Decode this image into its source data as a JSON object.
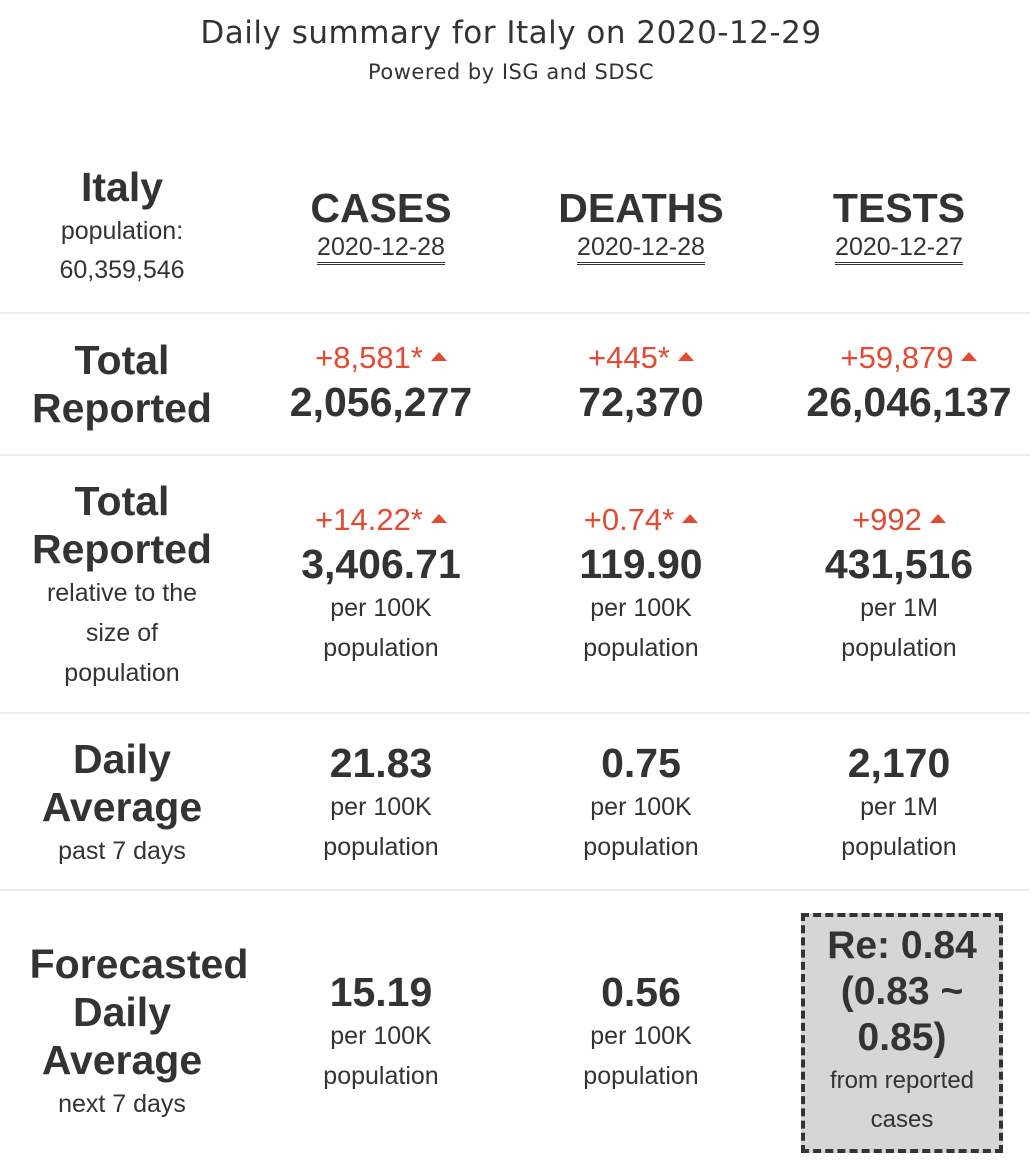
{
  "header": {
    "title": "Daily summary for Italy on 2020-12-29",
    "subtitle": "Powered by ISG and SDSC"
  },
  "country": {
    "name": "Italy",
    "population_label": "population:",
    "population": "60,359,546"
  },
  "columns": [
    {
      "title": "CASES",
      "date": "2020-12-28"
    },
    {
      "title": "DEATHS",
      "date": "2020-12-28"
    },
    {
      "title": "TESTS",
      "date": "2020-12-27"
    }
  ],
  "rows": {
    "total": {
      "label1": "Total",
      "label2": "Reported",
      "cells": [
        {
          "delta": "+8,581*",
          "value": "2,056,277"
        },
        {
          "delta": "+445*",
          "value": "72,370"
        },
        {
          "delta": "+59,879",
          "value": "26,046,137"
        }
      ]
    },
    "relative": {
      "label1": "Total",
      "label2": "Reported",
      "sub1": "relative to the",
      "sub2": "size of",
      "sub3": "population",
      "cells": [
        {
          "delta": "+14.22*",
          "value": "3,406.71",
          "unit1": "per 100K",
          "unit2": "population"
        },
        {
          "delta": "+0.74*",
          "value": "119.90",
          "unit1": "per 100K",
          "unit2": "population"
        },
        {
          "delta": "+992",
          "value": "431,516",
          "unit1": "per 1M",
          "unit2": "population"
        }
      ]
    },
    "daily": {
      "label1": "Daily",
      "label2": "Average",
      "sub": "past 7 days",
      "cells": [
        {
          "value": "21.83",
          "unit1": "per 100K",
          "unit2": "population"
        },
        {
          "value": "0.75",
          "unit1": "per 100K",
          "unit2": "population"
        },
        {
          "value": "2,170",
          "unit1": "per 1M",
          "unit2": "population"
        }
      ]
    },
    "forecast": {
      "label1": "Forecasted",
      "label2": "Daily",
      "label3": "Average",
      "sub": "next 7 days",
      "cells": [
        {
          "value": "15.19",
          "unit1": "per 100K",
          "unit2": "population"
        },
        {
          "value": "0.56",
          "unit1": "per 100K",
          "unit2": "population"
        }
      ],
      "re": {
        "line1": "Re: 0.84",
        "line2": "(0.83 ~",
        "line3": "0.85)",
        "note1": "from reported",
        "note2": "cases"
      }
    }
  },
  "colors": {
    "text": "#333333",
    "delta": "#e24a33",
    "separator": "#eeeeee",
    "re_box": "#d6d6d6"
  }
}
